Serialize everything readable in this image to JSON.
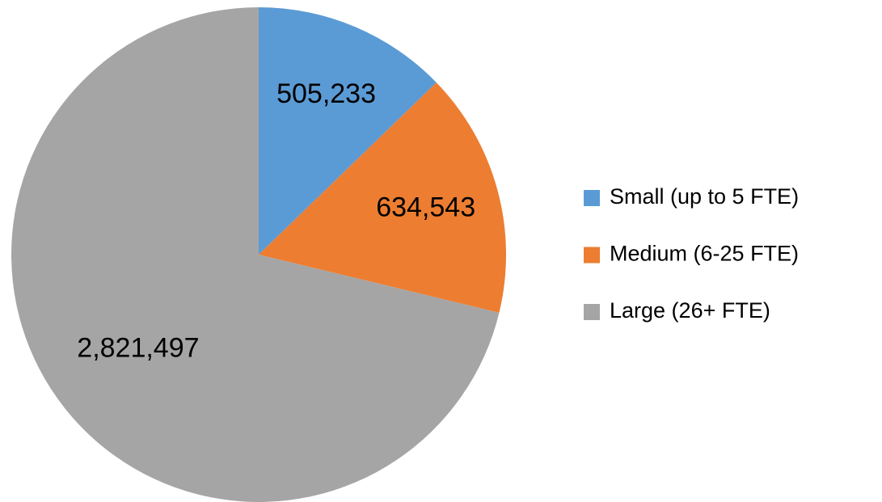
{
  "chart_data": {
    "type": "pie",
    "categories": [
      "Small (up to 5 FTE)",
      "Medium (6-25 FTE)",
      "Large (26+ FTE)"
    ],
    "values": [
      505233,
      634543,
      2821497
    ],
    "value_labels": [
      "505,233",
      "634,543",
      "2,821,497"
    ],
    "colors": [
      "#5b9bd5",
      "#ed7d31",
      "#a5a5a5"
    ],
    "legend": "right"
  }
}
